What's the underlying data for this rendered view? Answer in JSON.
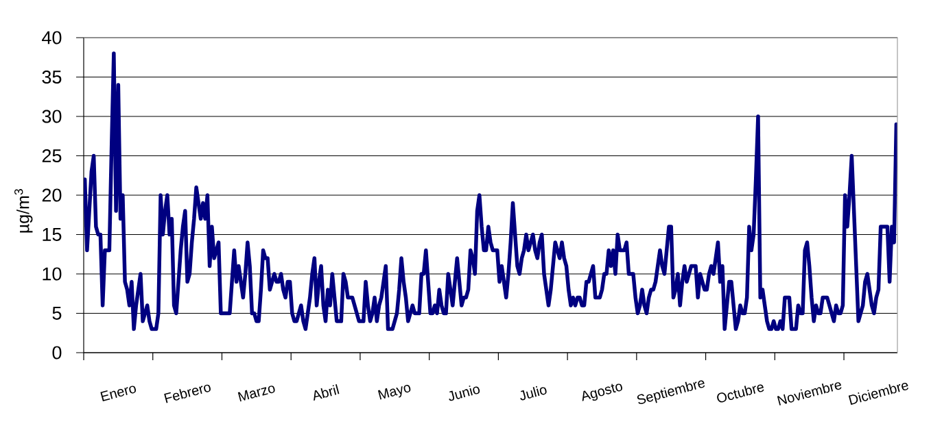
{
  "chart_data": {
    "type": "line",
    "ylabel": "µg/m$^{3}$",
    "color": "#000080",
    "marker": "none",
    "line_style": "solid",
    "grid": "y",
    "categories": [
      null,
      null,
      null,
      null,
      null,
      null,
      null,
      null,
      null,
      null,
      null,
      null,
      null,
      null,
      null,
      "Enero",
      null,
      null,
      null,
      null,
      null,
      null,
      null,
      null,
      null,
      null,
      null,
      null,
      null,
      null,
      null,
      null,
      null,
      null,
      null,
      null,
      null,
      null,
      null,
      null,
      null,
      null,
      null,
      null,
      null,
      null,
      "Febrero",
      null,
      null,
      null,
      null,
      null,
      null,
      null,
      null,
      null,
      null,
      null,
      null,
      null,
      null,
      null,
      null,
      null,
      null,
      null,
      null,
      null,
      null,
      null,
      null,
      null,
      null,
      null,
      null,
      null,
      null,
      "Marzo",
      null,
      null,
      null,
      null,
      null,
      null,
      null,
      null,
      null,
      null,
      null,
      null,
      null,
      null,
      null,
      null,
      null,
      null,
      null,
      null,
      null,
      null,
      null,
      null,
      null,
      null,
      null,
      null,
      null,
      null,
      "Abril",
      null,
      null,
      null,
      null,
      null,
      null,
      null,
      null,
      null,
      null,
      null,
      null,
      null,
      null,
      null,
      null,
      null,
      null,
      null,
      null,
      null,
      null,
      null,
      null,
      null,
      null,
      null,
      null,
      null,
      null,
      "Mayo",
      null,
      null,
      null,
      null,
      null,
      null,
      null,
      null,
      null,
      null,
      null,
      null,
      null,
      null,
      null,
      null,
      null,
      null,
      null,
      null,
      null,
      null,
      null,
      null,
      null,
      null,
      null,
      null,
      null,
      null,
      "Junio",
      null,
      null,
      null,
      null,
      null,
      null,
      null,
      null,
      null,
      null,
      null,
      null,
      null,
      null,
      null,
      null,
      null,
      null,
      null,
      null,
      null,
      null,
      null,
      null,
      null,
      null,
      null,
      null,
      null,
      null,
      "Julio",
      null,
      null,
      null,
      null,
      null,
      null,
      null,
      null,
      null,
      null,
      null,
      null,
      null,
      null,
      null,
      null,
      null,
      null,
      null,
      null,
      null,
      null,
      null,
      null,
      null,
      null,
      null,
      null,
      null,
      null,
      "Agosto",
      null,
      null,
      null,
      null,
      null,
      null,
      null,
      null,
      null,
      null,
      null,
      null,
      null,
      null,
      null,
      null,
      null,
      null,
      null,
      null,
      null,
      null,
      null,
      null,
      null,
      null,
      null,
      null,
      null,
      null,
      "Septiembre",
      null,
      null,
      null,
      null,
      null,
      null,
      null,
      null,
      null,
      null,
      null,
      null,
      null,
      null,
      null,
      null,
      null,
      null,
      null,
      null,
      null,
      null,
      null,
      null,
      null,
      null,
      null,
      null,
      null,
      null,
      "Octubre",
      null,
      null,
      null,
      null,
      null,
      null,
      null,
      null,
      null,
      null,
      null,
      null,
      null,
      null,
      null,
      null,
      null,
      null,
      null,
      null,
      null,
      null,
      null,
      null,
      null,
      null,
      null,
      null,
      null,
      null,
      "Noviembre",
      null,
      null,
      null,
      null,
      null,
      null,
      null,
      null,
      null,
      null,
      null,
      null,
      null,
      null,
      null,
      null,
      null,
      null,
      null,
      null,
      null,
      null,
      null,
      null,
      null,
      null,
      null,
      null,
      null,
      null,
      "Diciembre",
      null,
      null,
      null,
      null,
      null,
      null,
      null,
      null
    ],
    "values": [
      22,
      13,
      18,
      23,
      25,
      16,
      15,
      15,
      6,
      13,
      13,
      13,
      26,
      38,
      18,
      34,
      17,
      20,
      9,
      8,
      6,
      9,
      3,
      6,
      8,
      10,
      4,
      5,
      6,
      4,
      3,
      3,
      3,
      5,
      20,
      15,
      18,
      20,
      15,
      17,
      6,
      5,
      9,
      13,
      16,
      18,
      9,
      10,
      14,
      17,
      21,
      19,
      17,
      19,
      17,
      20,
      11,
      16,
      12,
      13,
      14,
      5,
      5,
      5,
      5,
      5,
      9,
      13,
      9,
      11,
      9,
      7,
      10,
      14,
      11,
      5,
      5,
      4,
      4,
      8,
      13,
      12,
      12,
      8,
      9,
      10,
      9,
      9,
      10,
      8,
      7,
      9,
      9,
      5,
      4,
      4,
      5,
      6,
      4,
      3,
      5,
      7,
      10,
      12,
      6,
      9,
      11,
      6,
      4,
      8,
      6,
      10,
      7,
      4,
      4,
      4,
      10,
      9,
      7,
      7,
      7,
      6,
      5,
      4,
      4,
      4,
      9,
      6,
      4,
      5,
      7,
      4,
      6,
      7,
      9,
      11,
      3,
      3,
      3,
      4,
      5,
      8,
      12,
      9,
      7,
      4,
      5,
      6,
      5,
      5,
      5,
      10,
      10,
      13,
      9,
      5,
      5,
      6,
      5,
      8,
      6,
      5,
      5,
      10,
      8,
      6,
      9,
      12,
      9,
      6,
      7,
      7,
      8,
      13,
      12,
      10,
      18,
      20,
      16,
      13,
      13,
      16,
      14,
      13,
      13,
      13,
      9,
      11,
      9,
      7,
      10,
      14,
      19,
      15,
      11,
      10,
      12,
      13,
      15,
      13,
      14,
      15,
      13,
      12,
      14,
      15,
      10,
      8,
      6,
      8,
      11,
      14,
      13,
      12,
      14,
      12,
      11,
      8,
      6,
      7,
      6,
      7,
      7,
      6,
      6,
      9,
      9,
      10,
      11,
      7,
      7,
      7,
      8,
      10,
      10,
      13,
      11,
      13,
      10,
      15,
      13,
      13,
      13,
      14,
      10,
      10,
      10,
      7,
      5,
      6,
      8,
      6,
      5,
      7,
      8,
      8,
      9,
      11,
      13,
      11,
      10,
      13,
      16,
      16,
      7,
      8,
      10,
      6,
      9,
      11,
      9,
      10,
      11,
      11,
      11,
      7,
      10,
      9,
      8,
      8,
      10,
      11,
      10,
      12,
      14,
      9,
      11,
      3,
      6,
      9,
      9,
      6,
      3,
      4,
      6,
      5,
      5,
      7,
      16,
      13,
      15,
      22,
      30,
      7,
      8,
      6,
      4,
      3,
      3,
      4,
      3,
      3,
      4,
      3,
      7,
      7,
      7,
      3,
      3,
      3,
      6,
      5,
      5,
      13,
      14,
      11,
      7,
      4,
      6,
      5,
      5,
      7,
      7,
      7,
      6,
      5,
      4,
      6,
      5,
      5,
      6,
      20,
      16,
      20,
      25,
      18,
      11,
      4,
      5,
      6,
      9,
      10,
      8,
      6,
      5,
      7,
      8,
      16,
      16,
      16,
      16,
      9,
      16,
      14,
      29
    ],
    "ylim": [
      0,
      40
    ],
    "yticks": [
      0,
      5,
      10,
      15,
      20,
      25,
      30,
      35,
      40
    ]
  }
}
